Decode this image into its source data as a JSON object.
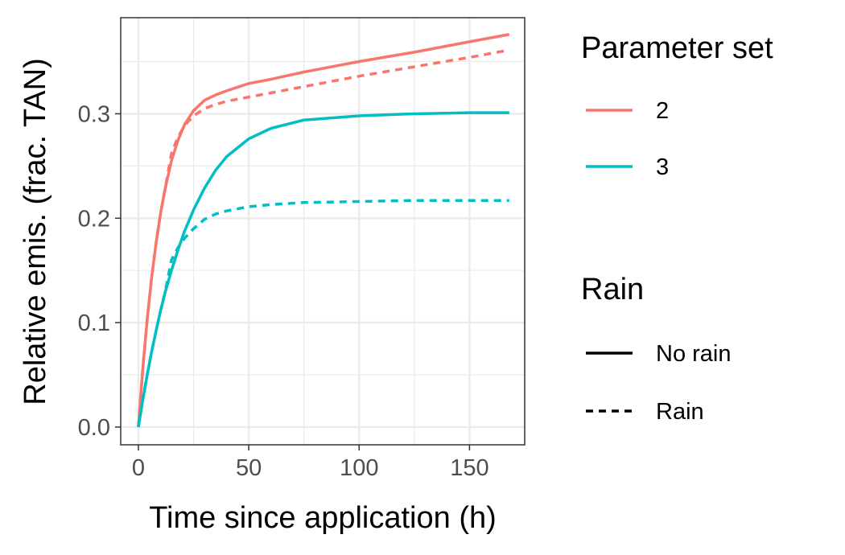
{
  "chart_data": {
    "type": "line",
    "xlabel": "Time since application (h)",
    "ylabel": "Relative emis. (frac. TAN)",
    "xlim": [
      -8,
      175
    ],
    "ylim": [
      -0.017,
      0.392
    ],
    "x_ticks": [
      0,
      50,
      100,
      150
    ],
    "x_tick_labels": [
      "0",
      "50",
      "100",
      "150"
    ],
    "y_ticks": [
      0.0,
      0.1,
      0.2,
      0.3
    ],
    "y_tick_labels": [
      "0.0",
      "0.1",
      "0.2",
      "0.3"
    ],
    "grid": true,
    "legend_placement": "right",
    "legends": [
      {
        "title": "Parameter set",
        "entries": [
          {
            "label": "2",
            "color": "#F8766D",
            "linetype": "solid"
          },
          {
            "label": "3",
            "color": "#00BFC4",
            "linetype": "solid"
          }
        ]
      },
      {
        "title": "Rain",
        "entries": [
          {
            "label": "No rain",
            "color": "#000000",
            "linetype": "solid"
          },
          {
            "label": "Rain",
            "color": "#000000",
            "linetype": "dashed"
          }
        ]
      }
    ],
    "series": [
      {
        "parameter_set": "2",
        "rain": "No rain",
        "color": "#F8766D",
        "linetype": "solid",
        "x": [
          0,
          2,
          4,
          6,
          8,
          10,
          12,
          15,
          18,
          21,
          25,
          30,
          35,
          40,
          50,
          60,
          75,
          100,
          125,
          150,
          168
        ],
        "y": [
          0,
          0.056,
          0.103,
          0.143,
          0.176,
          0.204,
          0.227,
          0.255,
          0.275,
          0.29,
          0.303,
          0.313,
          0.318,
          0.322,
          0.329,
          0.333,
          0.34,
          0.35,
          0.359,
          0.369,
          0.376
        ]
      },
      {
        "parameter_set": "2",
        "rain": "Rain",
        "color": "#F8766D",
        "linetype": "dashed",
        "x": [
          0,
          2,
          4,
          6,
          8,
          10,
          12,
          15,
          18,
          21,
          25,
          30,
          35,
          40,
          50,
          60,
          75,
          100,
          125,
          150,
          168
        ],
        "y": [
          0,
          0.056,
          0.103,
          0.143,
          0.176,
          0.204,
          0.227,
          0.262,
          0.278,
          0.289,
          0.298,
          0.305,
          0.309,
          0.312,
          0.316,
          0.32,
          0.326,
          0.336,
          0.345,
          0.354,
          0.361
        ]
      },
      {
        "parameter_set": "3",
        "rain": "No rain",
        "color": "#00BFC4",
        "linetype": "solid",
        "x": [
          0,
          2,
          4,
          6,
          8,
          10,
          12,
          15,
          18,
          21,
          25,
          30,
          35,
          40,
          50,
          60,
          75,
          100,
          125,
          150,
          168
        ],
        "y": [
          0,
          0.026,
          0.05,
          0.072,
          0.092,
          0.111,
          0.128,
          0.15,
          0.17,
          0.188,
          0.208,
          0.229,
          0.246,
          0.259,
          0.276,
          0.286,
          0.294,
          0.298,
          0.3,
          0.301,
          0.301
        ]
      },
      {
        "parameter_set": "3",
        "rain": "Rain",
        "color": "#00BFC4",
        "linetype": "dashed",
        "x": [
          0,
          2,
          4,
          6,
          8,
          10,
          12,
          15,
          18,
          21,
          25,
          30,
          35,
          40,
          50,
          60,
          75,
          100,
          125,
          150,
          168
        ],
        "y": [
          0,
          0.026,
          0.05,
          0.072,
          0.092,
          0.111,
          0.128,
          0.16,
          0.172,
          0.181,
          0.19,
          0.199,
          0.204,
          0.207,
          0.211,
          0.213,
          0.215,
          0.216,
          0.217,
          0.217,
          0.217
        ]
      }
    ]
  }
}
